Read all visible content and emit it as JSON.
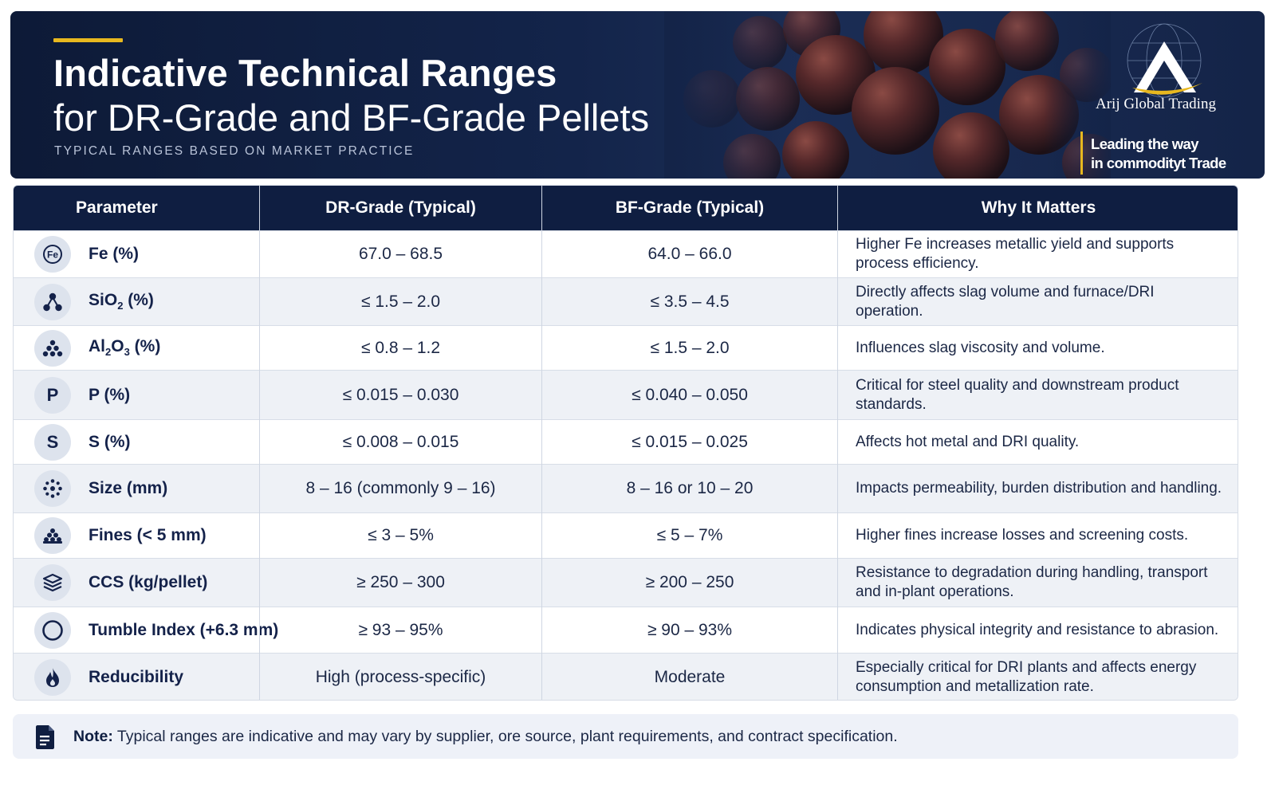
{
  "banner": {
    "title_line1": "Indicative Technical Ranges",
    "title_line2": "for DR-Grade and BF-Grade Pellets",
    "subtitle": "TYPICAL RANGES BASED ON MARKET PRACTICE",
    "accent_color": "#e8b81f",
    "background_color": "#0f1e41"
  },
  "logo": {
    "name": "Arij Global Trading",
    "tagline_line1": "Leading the way",
    "tagline_line2": "in commodityt Trade"
  },
  "table": {
    "headers": [
      "Parameter",
      "DR-Grade (Typical)",
      "BF-Grade (Typical)",
      "Why It Matters"
    ],
    "rows": [
      {
        "icon": "fe-element-icon",
        "param": "Fe (%)",
        "dr": "67.0 – 68.5",
        "bf": "64.0 – 66.0",
        "why": "Higher Fe increases metallic yield and supports process efficiency."
      },
      {
        "icon": "molecule-icon",
        "param_pre": "SiO",
        "param_sub": "2",
        "param_post": " (%)",
        "dr": "≤ 1.5 – 2.0",
        "bf": "≤ 3.5 – 4.5",
        "why": "Directly affects slag volume and furnace/DRI operation."
      },
      {
        "icon": "pile-dots-icon",
        "param_pre": "Al",
        "param_sub": "2",
        "param_mid": "O",
        "param_sub2": "3",
        "param_post": " (%)",
        "dr": "≤ 0.8 – 1.2",
        "bf": "≤ 1.5 – 2.0",
        "why": "Influences slag viscosity and volume."
      },
      {
        "icon": "letter-p-icon",
        "icon_letter": "P",
        "param": "P (%)",
        "dr": "≤ 0.015 – 0.030",
        "bf": "≤ 0.040 – 0.050",
        "why": "Critical for steel quality and downstream product standards."
      },
      {
        "icon": "letter-s-icon",
        "icon_letter": "S",
        "param": "S (%)",
        "dr": "≤ 0.008 – 0.015",
        "bf": "≤ 0.015 – 0.025",
        "why": "Affects hot metal and DRI quality."
      },
      {
        "icon": "dots-ring-icon",
        "param": "Size (mm)",
        "dr": "8 – 16 (commonly 9 – 16)",
        "bf": "8 – 16 or 10 – 20",
        "why": "Impacts permeability, burden distribution and handling."
      },
      {
        "icon": "pile-icon",
        "param": "Fines (< 5 mm)",
        "dr": "≤ 3 – 5%",
        "bf": "≤ 5 – 7%",
        "why": "Higher fines increase losses and screening costs."
      },
      {
        "icon": "layers-icon",
        "param": "CCS (kg/pellet)",
        "dr": "≥ 250 – 300",
        "bf": "≥ 200 – 250",
        "why": "Resistance to degradation during handling, transport and in-plant operations."
      },
      {
        "icon": "ring-icon",
        "param": "Tumble Index (+6.3 mm)",
        "dr": "≥ 93 – 95%",
        "bf": "≥ 90 – 93%",
        "why": "Indicates physical integrity and resistance to abrasion."
      },
      {
        "icon": "flame-icon",
        "param": "Reducibility",
        "dr": "High (process-specific)",
        "bf": "Moderate",
        "why": "Especially critical for DRI plants and affects energy consumption and metallization rate."
      }
    ]
  },
  "note": {
    "label": "Note:",
    "text": " Typical ranges are indicative and may vary by supplier, ore source, plant requirements, and contract specification."
  }
}
